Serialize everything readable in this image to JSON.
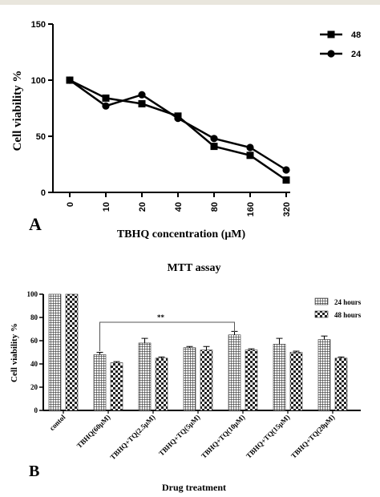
{
  "chart_data": [
    {
      "type": "line",
      "panel_label": "A",
      "xlabel": "TBHQ concentration (μM)",
      "ylabel": "Cell viability %",
      "ylim": [
        0,
        150
      ],
      "yticks": [
        "0",
        "50",
        "100",
        "150"
      ],
      "categories": [
        "0",
        "10",
        "20",
        "40",
        "80",
        "160",
        "320"
      ],
      "series": [
        {
          "name": "48",
          "marker": "square",
          "values": [
            100,
            84,
            79,
            68,
            41,
            33,
            11
          ]
        },
        {
          "name": "24",
          "marker": "circle",
          "values": [
            100,
            77,
            87,
            66,
            48,
            40,
            20
          ]
        }
      ],
      "legend_position": "top-right",
      "grid": false
    },
    {
      "type": "bar",
      "panel_label": "B",
      "title": "MTT assay",
      "xlabel": "Drug treatment",
      "ylabel": "Cell viability %",
      "ylim": [
        0,
        100
      ],
      "yticks": [
        "0",
        "20",
        "40",
        "60",
        "80",
        "100"
      ],
      "categories": [
        "contol",
        "TBHQ(60μM)",
        "TBHQ+TQ(2.5μM)",
        "TBHQ+TQ(5μM)",
        "TBHQ+TQ(10μM)",
        "TBHQ+TQ(15μM)",
        "TBHQ+TQ(20μM)"
      ],
      "series": [
        {
          "name": "24 hours",
          "pattern": "grid",
          "values": [
            100,
            48,
            58,
            54,
            65,
            57,
            61
          ],
          "errors": [
            0,
            2,
            4,
            1,
            3,
            5,
            3
          ]
        },
        {
          "name": "48 hours",
          "pattern": "checker",
          "values": [
            100,
            41,
            45,
            52,
            52,
            50,
            45
          ],
          "errors": [
            0,
            1,
            1,
            3,
            1,
            1,
            1
          ]
        }
      ],
      "annotation": {
        "text": "**",
        "from_category": 1,
        "to_category": 4
      },
      "legend_position": "top-right",
      "grid": false
    }
  ]
}
